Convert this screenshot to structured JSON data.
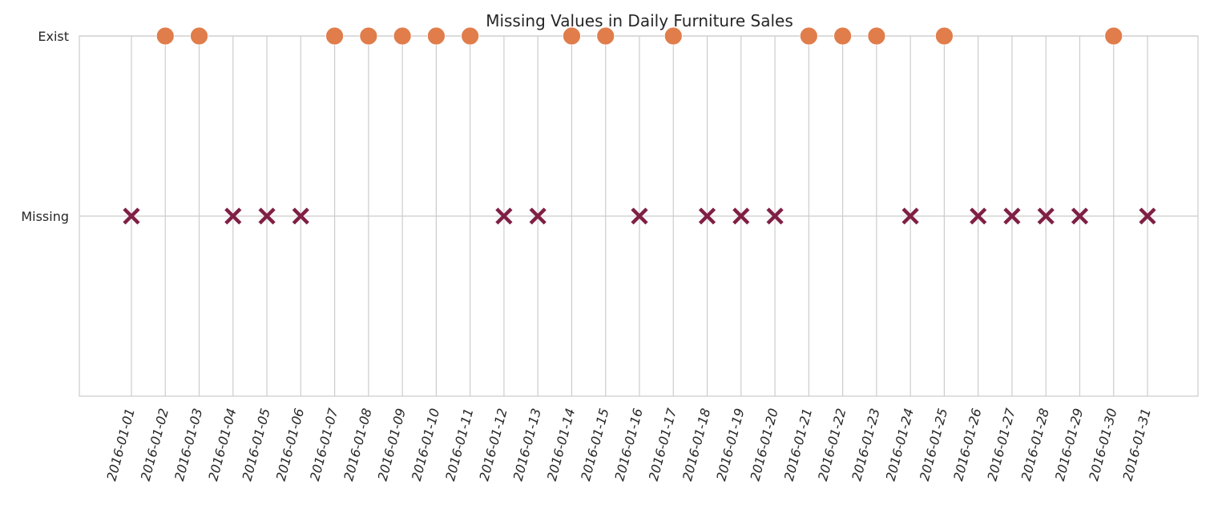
{
  "chart_data": {
    "type": "scatter",
    "title": "Missing Values in Daily Furniture Sales",
    "xlabel": "",
    "ylabel": "",
    "grid": true,
    "y_categories": [
      "Missing",
      "Exist"
    ],
    "ylim": [
      -1,
      1
    ],
    "x": [
      "2016-01-01",
      "2016-01-02",
      "2016-01-03",
      "2016-01-04",
      "2016-01-05",
      "2016-01-06",
      "2016-01-07",
      "2016-01-08",
      "2016-01-09",
      "2016-01-10",
      "2016-01-11",
      "2016-01-12",
      "2016-01-13",
      "2016-01-14",
      "2016-01-15",
      "2016-01-16",
      "2016-01-17",
      "2016-01-18",
      "2016-01-19",
      "2016-01-20",
      "2016-01-21",
      "2016-01-22",
      "2016-01-23",
      "2016-01-24",
      "2016-01-25",
      "2016-01-26",
      "2016-01-27",
      "2016-01-28",
      "2016-01-29",
      "2016-01-30",
      "2016-01-31"
    ],
    "status": [
      "Missing",
      "Exist",
      "Exist",
      "Missing",
      "Missing",
      "Missing",
      "Exist",
      "Exist",
      "Exist",
      "Exist",
      "Exist",
      "Missing",
      "Missing",
      "Exist",
      "Exist",
      "Missing",
      "Exist",
      "Missing",
      "Missing",
      "Missing",
      "Exist",
      "Exist",
      "Exist",
      "Missing",
      "Exist",
      "Missing",
      "Missing",
      "Missing",
      "Missing",
      "Exist",
      "Missing"
    ],
    "colors": {
      "exist": "#e07d4b",
      "missing": "#7f1f44",
      "grid": "#cccccc",
      "axis": "#cccccc",
      "text": "#262626"
    },
    "markers": {
      "exist": "circle",
      "missing": "x-cross"
    }
  }
}
